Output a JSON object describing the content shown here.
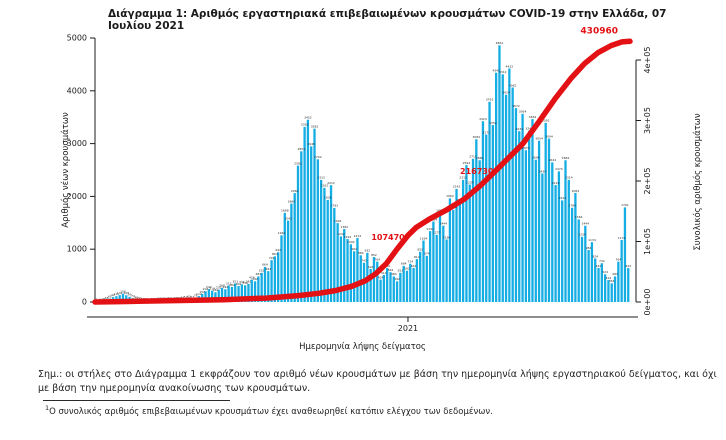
{
  "title": "Διάγραμμα 1: Αριθμός εργαστηριακά επιβεβαιωμένων κρουσμάτων COVID-19 στην Ελλάδα, 07 Ιουλίου 2021",
  "colors": {
    "bar": "#14ADE4",
    "line": "#E31114",
    "annotation": "#E31114",
    "axis": "#1b1b1b",
    "bar_label": "#2b2b2b"
  },
  "chart_data": {
    "type": "bar+line",
    "title": "",
    "xlabel": "Ημερομηνία λήψης δείγματος",
    "x_tick_label": "2021",
    "x_tick_t": 0.585,
    "left_axis": {
      "label": "Αριθμός νέων κρουσμάτων",
      "ticks": [
        0,
        1000,
        2000,
        3000,
        4000,
        5000
      ],
      "max": 5000
    },
    "right_axis": {
      "label": "Συνολικός αριθμός κρουσμάτων",
      "ticks": [
        "0e+00",
        "1e+05",
        "2e+05",
        "3e+05",
        "4e+05"
      ],
      "tick_values": [
        0,
        100000,
        200000,
        300000,
        400000
      ],
      "max": 400000
    },
    "bars": {
      "description": "daily laboratory-confirmed new cases by sampling date, Feb 2020 - Jul 2021 (sampled envelope)",
      "values": [
        2,
        6,
        18,
        38,
        65,
        92,
        110,
        131,
        156,
        128,
        99,
        74,
        48,
        30,
        18,
        11,
        9,
        13,
        17,
        22,
        27,
        24,
        31,
        28,
        36,
        30,
        44,
        52,
        63,
        57,
        78,
        112,
        152,
        204,
        242,
        214,
        184,
        232,
        268,
        242,
        312,
        284,
        351,
        302,
        334,
        316,
        342,
        424,
        392,
        484,
        552,
        664,
        584,
        792,
        864,
        942,
        1262,
        1688,
        1542,
        1864,
        2062,
        2582,
        2854,
        3316,
        3452,
        2948,
        3282,
        2702,
        2312,
        2162,
        1934,
        2212,
        1782,
        1494,
        1242,
        1382,
        1192,
        1092,
        962,
        1212,
        884,
        742,
        932,
        624,
        852,
        764,
        424,
        512,
        642,
        564,
        484,
        392,
        552,
        684,
        592,
        724,
        644,
        812,
        952,
        1164,
        874,
        1342,
        1524,
        1272,
        1692,
        1444,
        1184,
        1962,
        1744,
        2142,
        1892,
        2312,
        2592,
        2224,
        2712,
        3082,
        2684,
        3424,
        3172,
        3792,
        3352,
        4342,
        4861,
        4312,
        3924,
        4422,
        4062,
        3672,
        3234,
        3564,
        2874,
        3242,
        3464,
        2694,
        3054,
        2434,
        3392,
        3094,
        2644,
        2214,
        2474,
        1924,
        2684,
        2314,
        1784,
        2064,
        1564,
        1234,
        1444,
        984,
        1134,
        824,
        644,
        734,
        524,
        414,
        354,
        484,
        764,
        1174,
        1791,
        642
      ]
    },
    "cumulative_line": {
      "description": "cumulative confirmed cases (right axis), t = fraction of x range",
      "points": [
        [
          0.0,
          0
        ],
        [
          0.08,
          1200
        ],
        [
          0.16,
          2400
        ],
        [
          0.24,
          3800
        ],
        [
          0.32,
          6500
        ],
        [
          0.38,
          10500
        ],
        [
          0.42,
          14500
        ],
        [
          0.45,
          19000
        ],
        [
          0.48,
          26000
        ],
        [
          0.505,
          35000
        ],
        [
          0.525,
          47000
        ],
        [
          0.545,
          64000
        ],
        [
          0.565,
          88000
        ],
        [
          0.585,
          110000
        ],
        [
          0.6,
          123000
        ],
        [
          0.625,
          137000
        ],
        [
          0.655,
          151000
        ],
        [
          0.69,
          170000
        ],
        [
          0.72,
          192000
        ],
        [
          0.75,
          218000
        ],
        [
          0.775,
          240000
        ],
        [
          0.8,
          262000
        ],
        [
          0.83,
          298000
        ],
        [
          0.86,
          336000
        ],
        [
          0.89,
          370000
        ],
        [
          0.915,
          394000
        ],
        [
          0.94,
          412000
        ],
        [
          0.965,
          424000
        ],
        [
          0.985,
          430000
        ],
        [
          1.0,
          430960
        ]
      ],
      "milestone_labels": [
        {
          "label": "107470",
          "value": 107470
        },
        {
          "label": "216730",
          "value": 216730
        }
      ],
      "final_label": "430960",
      "final_value": 430960
    }
  },
  "notes": {
    "note_lines": [
      "Σημ.: οι στήλες στο Διάγραμμα 1 εκφράζουν τον αριθμό νέων κρουσμάτων με βάση την ημερομηνία λήψης εργαστηριακού δείγματος, και όχι",
      "με βάση την ημερομηνία ανακοίνωσης των κρουσμάτων."
    ],
    "footnote_sup": "1",
    "footnote": "Ο συνολικός αριθμός επιβεβαιωμένων κρουσμάτων έχει αναθεωρηθεί κατόπιν ελέγχου των δεδομένων."
  }
}
